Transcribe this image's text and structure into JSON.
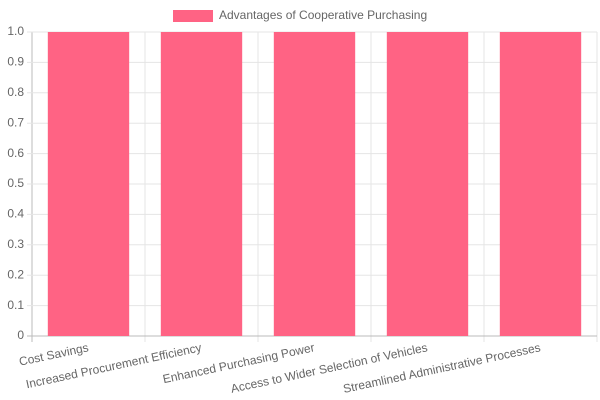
{
  "chart_data": {
    "type": "bar",
    "categories": [
      "Cost Savings",
      "Increased Procurement Efficiency",
      "Enhanced Purchasing Power",
      "Access to Wider Selection of Vehicles",
      "Streamlined Administrative Processes"
    ],
    "series": [
      {
        "name": "Advantages of Cooperative Purchasing",
        "color": "#ff6384",
        "values": [
          1,
          1,
          1,
          1,
          1
        ]
      }
    ],
    "ylim": [
      0,
      1
    ],
    "yticks": [
      0,
      0.1,
      0.2,
      0.3,
      0.4,
      0.5,
      0.6,
      0.7,
      0.8,
      0.9,
      {
        "value": 1,
        "label": "1.0"
      }
    ],
    "grid": true,
    "legend": "top"
  }
}
